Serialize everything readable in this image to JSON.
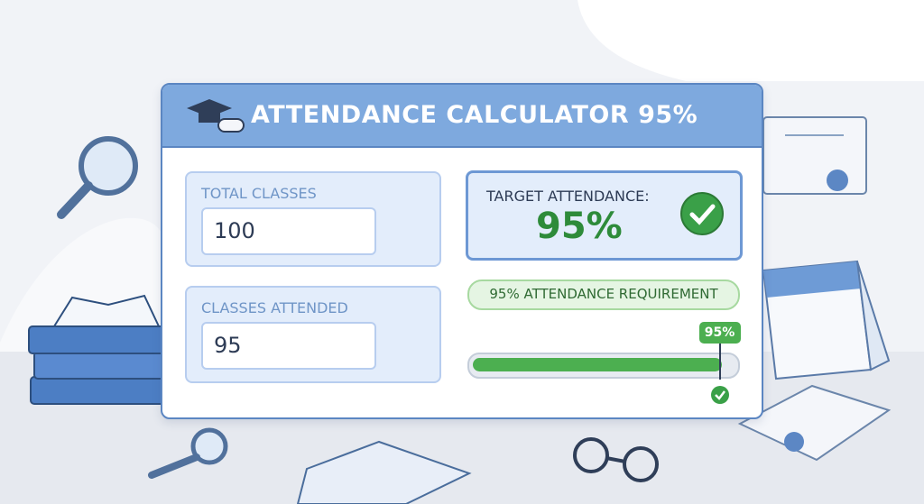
{
  "header": {
    "title": "ATTENDANCE CALCULATOR 95%"
  },
  "form": {
    "total_classes": {
      "label": "TOTAL CLASSES",
      "value": 100
    },
    "classes_attended": {
      "label": "CLASSES ATTENDED",
      "value": 95
    }
  },
  "target": {
    "label": "TARGET ATTENDANCE:",
    "value": "95%"
  },
  "requirement": "95% ATTENDANCE REQUIREMENT",
  "progress": {
    "label": "95%"
  }
}
